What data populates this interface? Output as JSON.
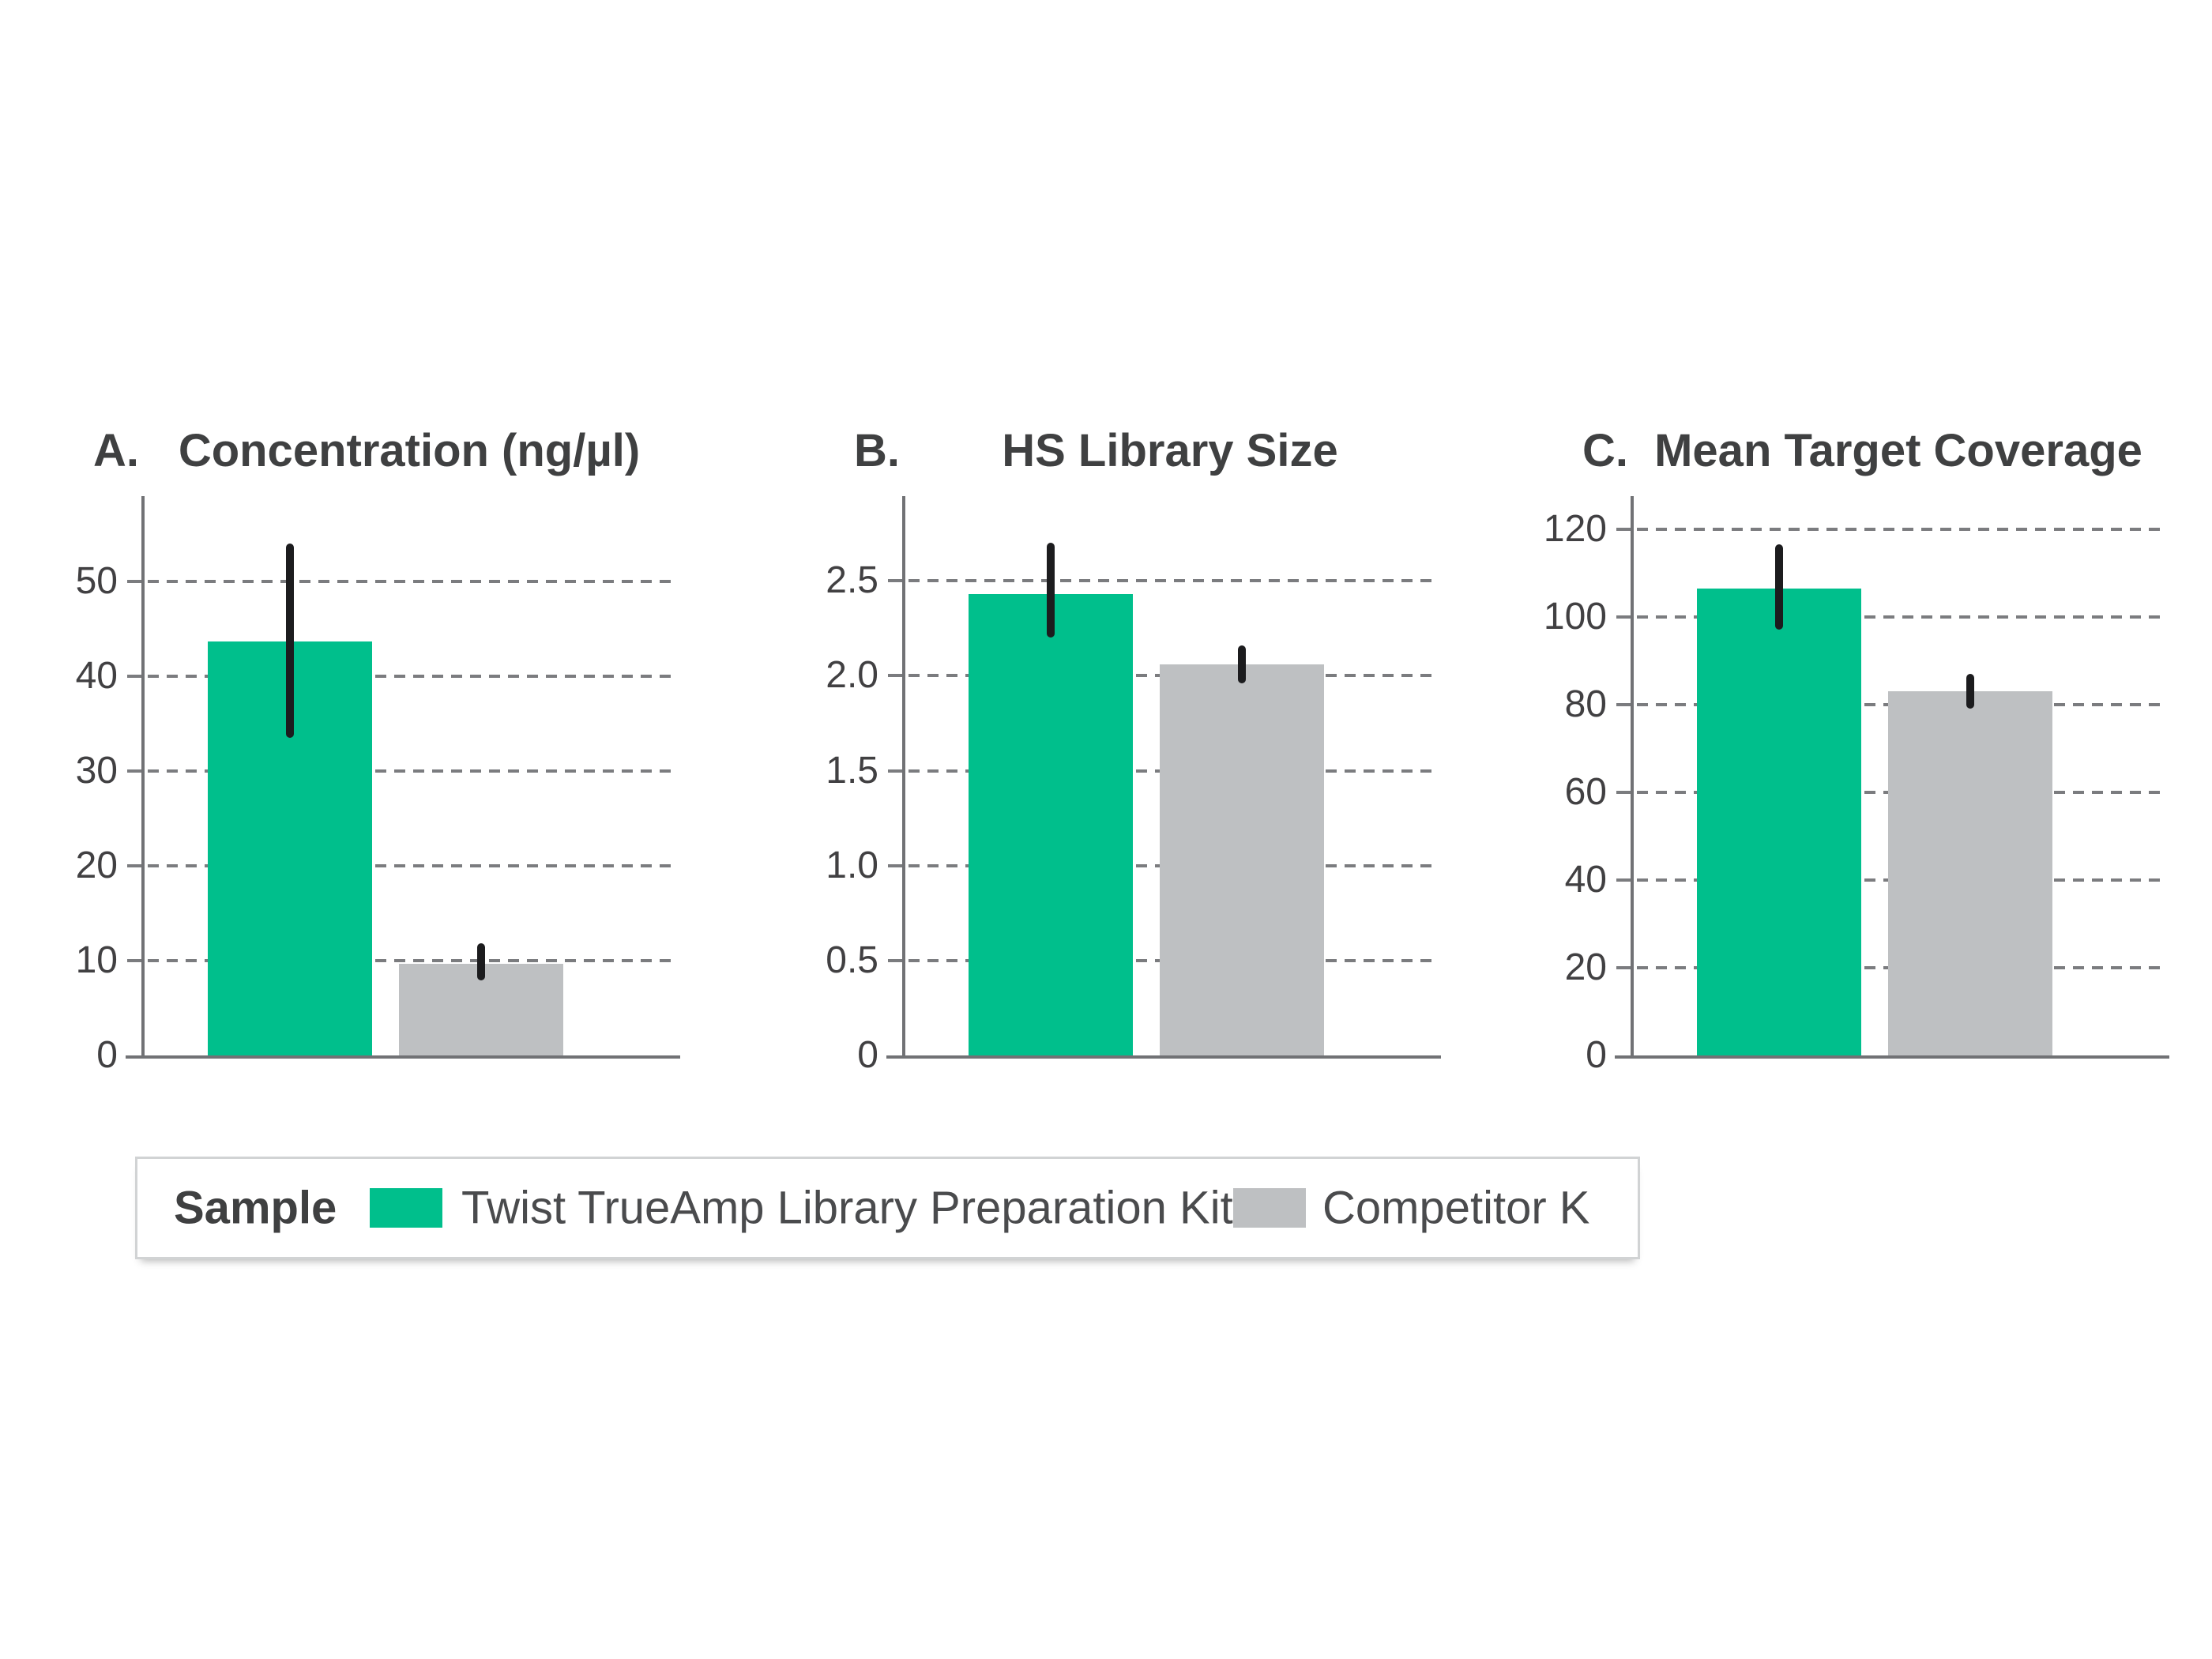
{
  "legend": {
    "label": "Sample",
    "items": [
      {
        "name": "Twist TrueAmp Library Preparation Kit",
        "color": "#00BF8C"
      },
      {
        "name": "Competitor K",
        "color": "#BEC0C2"
      }
    ],
    "border_color": "#D1D3D4"
  },
  "colors": {
    "background": "#FFFFFF",
    "error_bar": "#1C1C1E",
    "axis": "#717275",
    "gridline": "#7B7C7F",
    "title_text": "#3F4041",
    "tick_text": "#414042"
  },
  "chart_data": [
    {
      "type": "bar",
      "panel": "A.",
      "title": "Concentration (ng/µl)",
      "categories": [
        "Twist TrueAmp Library Preparation Kit",
        "Competitor K"
      ],
      "series": [
        {
          "name": "Twist TrueAmp Library Preparation Kit",
          "value": 43.7,
          "error_low": 33.5,
          "error_high": 54.0
        },
        {
          "name": "Competitor K",
          "value": 9.7,
          "error_low": 7.9,
          "error_high": 11.8
        }
      ],
      "ylim": [
        0,
        58.7
      ],
      "yticks": [
        0,
        10,
        20,
        30,
        40,
        50
      ],
      "ytick_labels": [
        "0",
        "10",
        "20",
        "30",
        "40",
        "50"
      ],
      "grid": "horizontal-dashed",
      "legend_position": "shared-bottom"
    },
    {
      "type": "bar",
      "panel": "B.",
      "title": "HS Library Size",
      "categories": [
        "Twist TrueAmp Library Preparation Kit",
        "Competitor K"
      ],
      "series": [
        {
          "name": "Twist TrueAmp Library Preparation Kit",
          "value": 2.43,
          "error_low": 2.2,
          "error_high": 2.7
        },
        {
          "name": "Competitor K",
          "value": 2.06,
          "error_low": 1.96,
          "error_high": 2.16
        }
      ],
      "ylim": [
        0,
        2.93
      ],
      "yticks": [
        0,
        0.5,
        1.0,
        1.5,
        2.0,
        2.5
      ],
      "ytick_labels": [
        "0",
        "0.5",
        "1.0",
        "1.5",
        "2.0",
        "2.5"
      ],
      "grid": "horizontal-dashed",
      "legend_position": "shared-bottom"
    },
    {
      "type": "bar",
      "panel": "C.",
      "title": "Mean Target Coverage",
      "categories": [
        "Twist TrueAmp Library Preparation Kit",
        "Competitor K"
      ],
      "series": [
        {
          "name": "Twist TrueAmp Library Preparation Kit",
          "value": 106.5,
          "error_low": 97.0,
          "error_high": 116.5
        },
        {
          "name": "Competitor K",
          "value": 83.0,
          "error_low": 79.0,
          "error_high": 87.0
        }
      ],
      "ylim": [
        0,
        126.8
      ],
      "yticks": [
        0,
        20,
        40,
        60,
        80,
        100,
        120
      ],
      "ytick_labels": [
        "0",
        "20",
        "40",
        "60",
        "80",
        "100",
        "120"
      ],
      "grid": "horizontal-dashed",
      "legend_position": "shared-bottom"
    }
  ]
}
